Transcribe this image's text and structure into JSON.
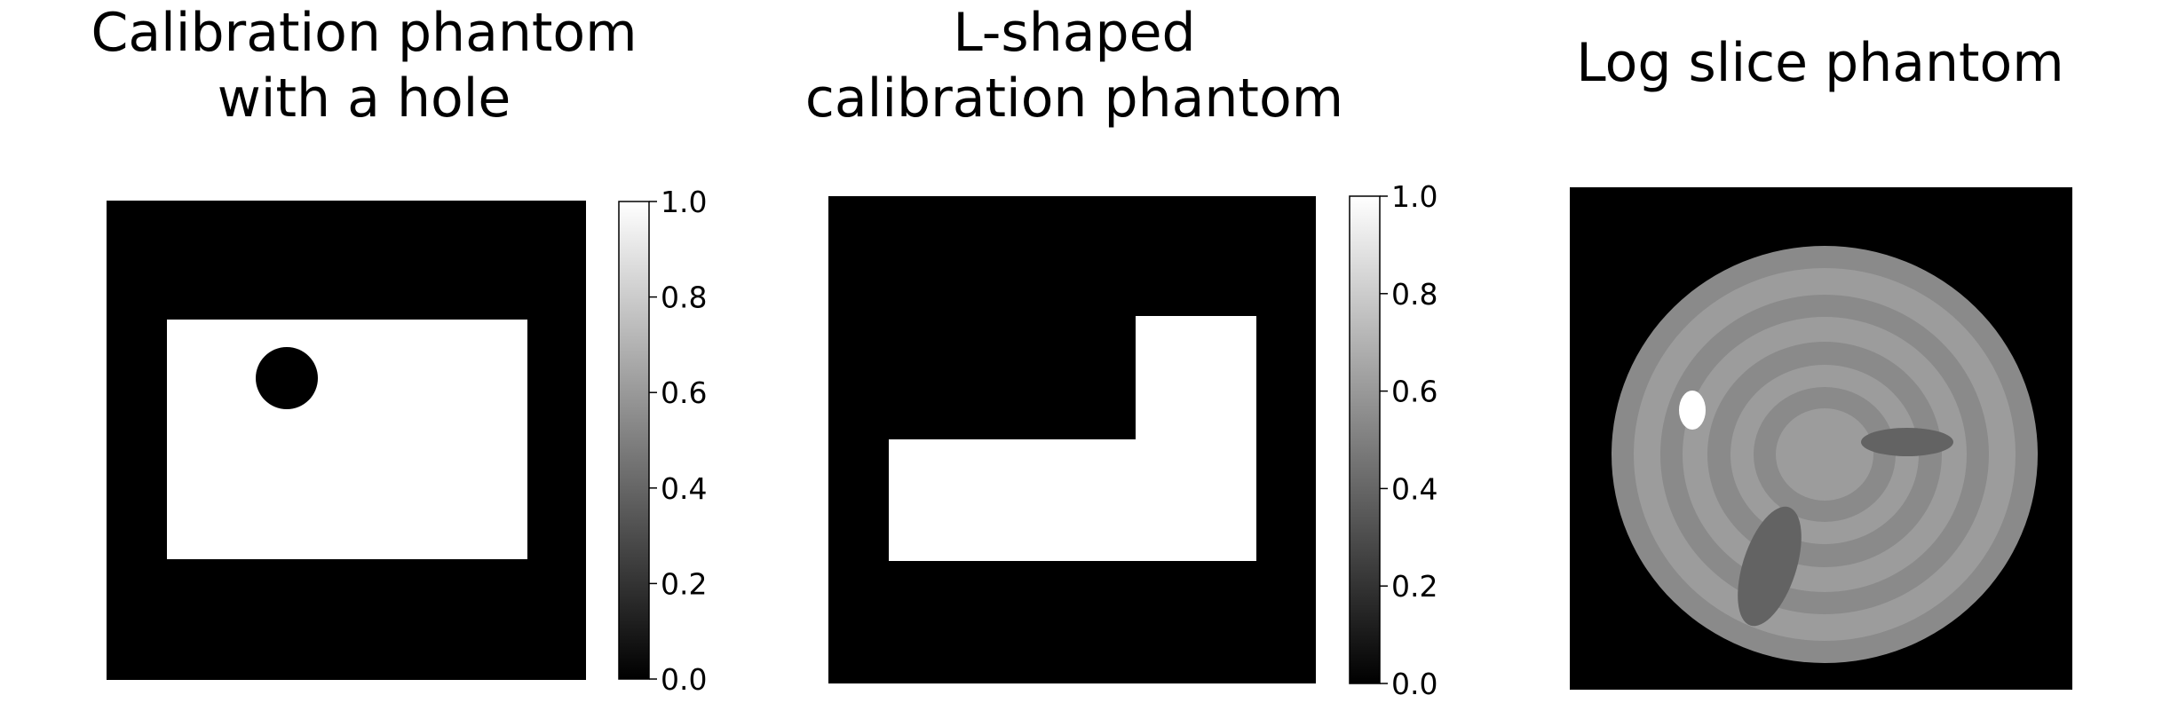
{
  "panels": [
    {
      "title_lines": [
        "Calibration phantom",
        "with a hole"
      ],
      "colorbar_ticks": [
        "0.0",
        "0.2",
        "0.4",
        "0.6",
        "0.8",
        "1.0"
      ]
    },
    {
      "title_lines": [
        "L-shaped",
        "calibration phantom"
      ],
      "colorbar_ticks": [
        "0.0",
        "0.2",
        "0.4",
        "0.6",
        "0.8",
        "1.0"
      ]
    },
    {
      "title_lines": [
        "Log slice phantom"
      ]
    }
  ],
  "colors": {
    "background": "#000000",
    "foreground": "#ffffff",
    "ring_light": "#9c9c9c",
    "ring_mid": "#8a8a8a",
    "ellipse_dark": "#636363"
  }
}
